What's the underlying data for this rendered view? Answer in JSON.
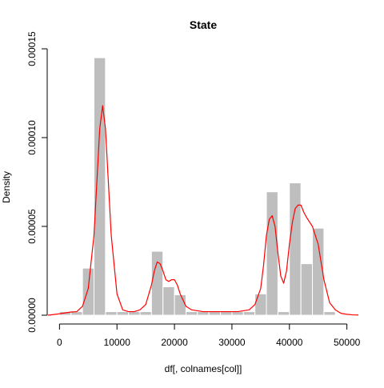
{
  "chart_data": {
    "type": "histogram",
    "title": "State",
    "xlabel": "df[, colnames[col]]",
    "ylabel": "Density",
    "xlim": [
      -2000,
      52000
    ],
    "ylim": [
      0,
      0.00015
    ],
    "x_ticks": [
      "0",
      "10000",
      "20000",
      "30000",
      "40000",
      "50000"
    ],
    "y_ticks": [
      "0.00000",
      "0.00005",
      "0.00010",
      "0.00015"
    ],
    "bin_width": 2000,
    "bins": [
      {
        "x0": 0,
        "x1": 2000,
        "density": 2e-06
      },
      {
        "x0": 2000,
        "x1": 4000,
        "density": 2e-06
      },
      {
        "x0": 4000,
        "x1": 6000,
        "density": 2.65e-05
      },
      {
        "x0": 6000,
        "x1": 8000,
        "density": 0.000145
      },
      {
        "x0": 8000,
        "x1": 10000,
        "density": 2e-06
      },
      {
        "x0": 10000,
        "x1": 12000,
        "density": 2e-06
      },
      {
        "x0": 12000,
        "x1": 14000,
        "density": 2e-06
      },
      {
        "x0": 14000,
        "x1": 16000,
        "density": 2e-06
      },
      {
        "x0": 16000,
        "x1": 18000,
        "density": 3.6e-05
      },
      {
        "x0": 18000,
        "x1": 20000,
        "density": 1.6e-05
      },
      {
        "x0": 20000,
        "x1": 22000,
        "density": 1.15e-05
      },
      {
        "x0": 22000,
        "x1": 24000,
        "density": 2e-06
      },
      {
        "x0": 24000,
        "x1": 26000,
        "density": 2e-06
      },
      {
        "x0": 26000,
        "x1": 28000,
        "density": 2e-06
      },
      {
        "x0": 28000,
        "x1": 30000,
        "density": 2e-06
      },
      {
        "x0": 30000,
        "x1": 32000,
        "density": 2e-06
      },
      {
        "x0": 32000,
        "x1": 34000,
        "density": 2e-06
      },
      {
        "x0": 34000,
        "x1": 36000,
        "density": 1.2e-05
      },
      {
        "x0": 36000,
        "x1": 38000,
        "density": 6.95e-05
      },
      {
        "x0": 38000,
        "x1": 40000,
        "density": 2e-06
      },
      {
        "x0": 40000,
        "x1": 42000,
        "density": 7.45e-05
      },
      {
        "x0": 42000,
        "x1": 44000,
        "density": 2.9e-05
      },
      {
        "x0": 44000,
        "x1": 46000,
        "density": 4.9e-05
      },
      {
        "x0": 46000,
        "x1": 48000,
        "density": 2e-06
      }
    ],
    "density_curve": {
      "color": "#ff0000",
      "x": [
        -2000,
        0,
        2000,
        3000,
        4000,
        5000,
        6000,
        6500,
        7000,
        7500,
        8000,
        8500,
        9000,
        10000,
        11000,
        12000,
        13000,
        14000,
        15000,
        16000,
        16500,
        17000,
        17500,
        18000,
        18500,
        19000,
        19500,
        20000,
        20500,
        21000,
        22000,
        23000,
        25000,
        28000,
        31000,
        33000,
        34000,
        35000,
        35500,
        36000,
        36500,
        37000,
        37500,
        38000,
        38500,
        39000,
        39500,
        40000,
        40500,
        41000,
        41500,
        42000,
        42500,
        43000,
        44000,
        45000,
        46000,
        47000,
        48000,
        49000,
        50000,
        51000,
        52000
      ],
      "y": [
        0,
        8e-07,
        1.8e-06,
        2e-06,
        5e-06,
        1.5e-05,
        4.5e-05,
        7.5e-05,
        0.000105,
        0.000118,
        0.000105,
        7.5e-05,
        4.5e-05,
        1.2e-05,
        3e-06,
        2e-06,
        2e-06,
        3e-06,
        6e-06,
        1.7e-05,
        2.5e-05,
        3e-05,
        2.9e-05,
        2.5e-05,
        2e-05,
        1.9e-05,
        2e-05,
        2e-05,
        1.7e-05,
        1.2e-05,
        5e-06,
        3e-06,
        2e-06,
        2e-06,
        2e-06,
        3e-06,
        6e-06,
        1.5e-05,
        2.8e-05,
        4.5e-05,
        5.4e-05,
        5.6e-05,
        5e-05,
        3.5e-05,
        2.2e-05,
        1.8e-05,
        2.5e-05,
        4e-05,
        5.2e-05,
        6e-05,
        6.2e-05,
        6.2e-05,
        5.8e-05,
        5.5e-05,
        5e-05,
        4e-05,
        2e-05,
        7e-06,
        3e-06,
        1e-06,
        5e-07,
        2e-07,
        1e-07
      ]
    },
    "bar_color": "#bebebe",
    "grid": false
  }
}
